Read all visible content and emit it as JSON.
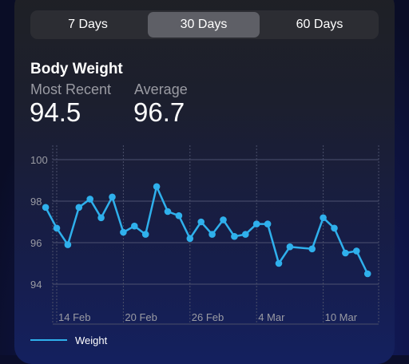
{
  "tabs": [
    {
      "label": "7 Days",
      "selected": false
    },
    {
      "label": "30 Days",
      "selected": true
    },
    {
      "label": "60 Days",
      "selected": false
    }
  ],
  "header": {
    "title": "Body Weight",
    "most_recent_label": "Most Recent",
    "most_recent_value": "94.5",
    "average_label": "Average",
    "average_value": "96.7"
  },
  "colors": {
    "series": "#2fb0ec",
    "selected_tab": "#5e5f66"
  },
  "chart_data": {
    "type": "line",
    "title": "",
    "xlabel": "",
    "ylabel": "",
    "ylim": [
      93,
      101
    ],
    "y_ticks": [
      "100",
      "98",
      "96",
      "94"
    ],
    "y_tick_values": [
      100,
      98,
      96,
      94
    ],
    "x_ticks": [
      "14 Feb",
      "20 Feb",
      "26 Feb",
      "4 Mar",
      "10 Mar"
    ],
    "x_tick_days": [
      0,
      6,
      12,
      18,
      24
    ],
    "legend_position": "bottom-left",
    "grid": true,
    "series": [
      {
        "name": "Weight",
        "day_index": [
          -1,
          0,
          1,
          2,
          3,
          4,
          5,
          6,
          7,
          8,
          9,
          10,
          11,
          12,
          13,
          14,
          15,
          16,
          17,
          18,
          19,
          20,
          21,
          23,
          24,
          25,
          26,
          27,
          28
        ],
        "values": [
          97.7,
          96.7,
          95.9,
          97.7,
          98.1,
          97.2,
          98.2,
          96.5,
          96.8,
          96.4,
          98.7,
          97.5,
          97.3,
          96.2,
          97.0,
          96.4,
          97.1,
          96.3,
          96.4,
          96.9,
          96.9,
          95.0,
          95.8,
          95.7,
          97.2,
          96.7,
          95.5,
          95.6,
          94.5
        ]
      }
    ]
  },
  "legend": {
    "label": "Weight"
  }
}
